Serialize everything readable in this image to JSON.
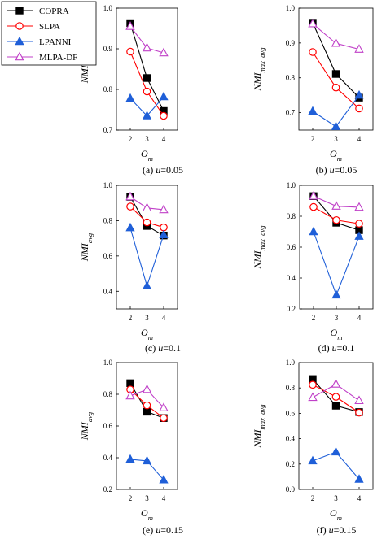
{
  "legend": {
    "entries": [
      {
        "name": "COPRA",
        "color": "#000000",
        "marker": "square-filled"
      },
      {
        "name": "SLPA",
        "color": "#ff0000",
        "marker": "circle-open"
      },
      {
        "name": "LPANNI",
        "color": "#1f5fd8",
        "marker": "triangle-filled"
      },
      {
        "name": "MLPA-DF",
        "color": "#c040c8",
        "marker": "triangle-open"
      }
    ]
  },
  "chart_data": [
    {
      "type": "line",
      "caption": "(a) u=0.05",
      "xlabel": "O_m",
      "ylabel": "NMI_avg",
      "x": [
        2,
        3,
        4
      ],
      "xticks": [
        "2",
        "3",
        "4"
      ],
      "yticks": [
        "0.7",
        "0.8",
        "0.9",
        "1.0"
      ],
      "ylim": [
        0.7,
        1.0
      ],
      "series": [
        {
          "name": "COPRA",
          "values": [
            0.963,
            0.828,
            0.747
          ]
        },
        {
          "name": "SLPA",
          "values": [
            0.893,
            0.795,
            0.735
          ]
        },
        {
          "name": "LPANNI",
          "values": [
            0.778,
            0.735,
            0.782
          ]
        },
        {
          "name": "MLPA-DF",
          "values": [
            0.955,
            0.902,
            0.89
          ]
        }
      ]
    },
    {
      "type": "line",
      "caption": "(b) u=0.05",
      "xlabel": "O_m",
      "ylabel": "NMI_max_avg",
      "x": [
        2,
        3,
        4
      ],
      "xticks": [
        "2",
        "3",
        "4"
      ],
      "yticks": [
        "0.7",
        "0.8",
        "0.9",
        "1.0"
      ],
      "ylim": [
        0.65,
        1.0
      ],
      "series": [
        {
          "name": "COPRA",
          "values": [
            0.958,
            0.811,
            0.743
          ]
        },
        {
          "name": "SLPA",
          "values": [
            0.874,
            0.772,
            0.712
          ]
        },
        {
          "name": "LPANNI",
          "values": [
            0.704,
            0.66,
            0.75
          ]
        },
        {
          "name": "MLPA-DF",
          "values": [
            0.955,
            0.899,
            0.882
          ]
        }
      ]
    },
    {
      "type": "line",
      "caption": "(c) u=0.1",
      "xlabel": "O_m",
      "ylabel": "NMI_avg",
      "x": [
        2,
        3,
        4
      ],
      "xticks": [
        "2",
        "3",
        "4"
      ],
      "yticks": [
        "0.4",
        "0.6",
        "0.8",
        "1.0"
      ],
      "ylim": [
        0.3,
        1.0
      ],
      "series": [
        {
          "name": "COPRA",
          "values": [
            0.935,
            0.77,
            0.716
          ]
        },
        {
          "name": "SLPA",
          "values": [
            0.88,
            0.79,
            0.762
          ]
        },
        {
          "name": "LPANNI",
          "values": [
            0.76,
            0.43,
            0.72
          ]
        },
        {
          "name": "MLPA-DF",
          "values": [
            0.935,
            0.872,
            0.862
          ]
        }
      ]
    },
    {
      "type": "line",
      "caption": "(d) u=0.1",
      "xlabel": "O_m",
      "ylabel": "NMI_max_avg",
      "x": [
        2,
        3,
        4
      ],
      "xticks": [
        "2",
        "3",
        "4"
      ],
      "yticks": [
        "0.2",
        "0.4",
        "0.6",
        "0.8",
        "1.0"
      ],
      "ylim": [
        0.2,
        1.0
      ],
      "series": [
        {
          "name": "COPRA",
          "values": [
            0.93,
            0.758,
            0.71
          ]
        },
        {
          "name": "SLPA",
          "values": [
            0.86,
            0.775,
            0.752
          ]
        },
        {
          "name": "LPANNI",
          "values": [
            0.7,
            0.29,
            0.67
          ]
        },
        {
          "name": "MLPA-DF",
          "values": [
            0.93,
            0.865,
            0.858
          ]
        }
      ]
    },
    {
      "type": "line",
      "caption": "(e) u=0.15",
      "xlabel": "O_m",
      "ylabel": "NMI_avg",
      "x": [
        2,
        3,
        4
      ],
      "xticks": [
        "2",
        "3",
        "4"
      ],
      "yticks": [
        "0.2",
        "0.4",
        "0.6",
        "0.8",
        "1.0"
      ],
      "ylim": [
        0.2,
        1.0
      ],
      "series": [
        {
          "name": "COPRA",
          "values": [
            0.87,
            0.69,
            0.65
          ]
        },
        {
          "name": "SLPA",
          "values": [
            0.83,
            0.73,
            0.65
          ]
        },
        {
          "name": "LPANNI",
          "values": [
            0.39,
            0.38,
            0.26
          ]
        },
        {
          "name": "MLPA-DF",
          "values": [
            0.79,
            0.83,
            0.715
          ]
        }
      ]
    },
    {
      "type": "line",
      "caption": "(f) u=0.15",
      "xlabel": "O_m",
      "ylabel": "NMI_max_avg",
      "x": [
        2,
        3,
        4
      ],
      "xticks": [
        "2",
        "3",
        "4"
      ],
      "yticks": [
        "0.0",
        "0.2",
        "0.4",
        "0.6",
        "0.8",
        "1.0"
      ],
      "ylim": [
        0.0,
        1.0
      ],
      "series": [
        {
          "name": "COPRA",
          "values": [
            0.87,
            0.66,
            0.61
          ]
        },
        {
          "name": "SLPA",
          "values": [
            0.825,
            0.73,
            0.605
          ]
        },
        {
          "name": "LPANNI",
          "values": [
            0.225,
            0.295,
            0.08
          ]
        },
        {
          "name": "MLPA-DF",
          "values": [
            0.725,
            0.83,
            0.7
          ]
        }
      ]
    }
  ]
}
